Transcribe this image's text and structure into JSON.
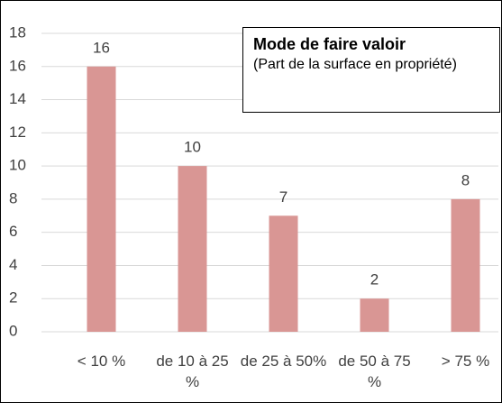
{
  "chart_data": {
    "type": "bar",
    "title": "Mode de faire valoir",
    "subtitle": "(Part de la surface en propriété)",
    "categories": [
      "< 10 %",
      "de 10 à 25 %",
      "de 25 à 50%",
      "de 50 à 75 %",
      "> 75 %"
    ],
    "values": [
      16,
      10,
      7,
      2,
      8
    ],
    "color": "#d99694",
    "ylim": [
      0,
      18
    ],
    "yticks": [
      0,
      2,
      4,
      6,
      8,
      10,
      12,
      14,
      16,
      18
    ],
    "grid": true
  }
}
